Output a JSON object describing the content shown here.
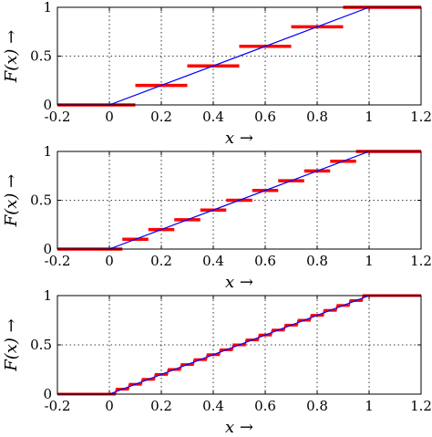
{
  "chart_data": [
    {
      "type": "line",
      "xlim": [
        -0.2,
        1.2
      ],
      "ylim": [
        0,
        1
      ],
      "xlabel": "x →",
      "ylabel": "F(x) →",
      "xticks": [
        "-0.2",
        "0",
        "0.2",
        "0.4",
        "0.6",
        "0.8",
        "1",
        "1.2"
      ],
      "yticks": [
        "0",
        "0.5",
        "1"
      ],
      "grid": true,
      "series": [
        {
          "kind": "continuous-cdf",
          "color": "#0000ff",
          "x": [
            -0.2,
            0,
            1,
            1.2
          ],
          "y": [
            0,
            0,
            1,
            1
          ]
        },
        {
          "kind": "step",
          "color": "#ff0000",
          "steps": [
            {
              "x0": -0.2,
              "x1": 0.1,
              "y": 0
            },
            {
              "x0": 0.1,
              "x1": 0.3,
              "y": 0.2
            },
            {
              "x0": 0.3,
              "x1": 0.5,
              "y": 0.4
            },
            {
              "x0": 0.5,
              "x1": 0.7,
              "y": 0.6
            },
            {
              "x0": 0.7,
              "x1": 0.9,
              "y": 0.8
            },
            {
              "x0": 0.9,
              "x1": 1.2,
              "y": 1
            }
          ]
        }
      ]
    },
    {
      "type": "line",
      "xlim": [
        -0.2,
        1.2
      ],
      "ylim": [
        0,
        1
      ],
      "xlabel": "x →",
      "ylabel": "F(x) →",
      "xticks": [
        "-0.2",
        "0",
        "0.2",
        "0.4",
        "0.6",
        "0.8",
        "1",
        "1.2"
      ],
      "yticks": [
        "0",
        "0.5",
        "1"
      ],
      "grid": true,
      "series": [
        {
          "kind": "continuous-cdf",
          "color": "#0000ff",
          "x": [
            -0.2,
            0,
            1,
            1.2
          ],
          "y": [
            0,
            0,
            1,
            1
          ]
        },
        {
          "kind": "step",
          "color": "#ff0000",
          "steps": [
            {
              "x0": -0.2,
              "x1": 0.05,
              "y": 0
            },
            {
              "x0": 0.05,
              "x1": 0.15,
              "y": 0.1
            },
            {
              "x0": 0.15,
              "x1": 0.25,
              "y": 0.2
            },
            {
              "x0": 0.25,
              "x1": 0.35,
              "y": 0.3
            },
            {
              "x0": 0.35,
              "x1": 0.45,
              "y": 0.4
            },
            {
              "x0": 0.45,
              "x1": 0.55,
              "y": 0.5
            },
            {
              "x0": 0.55,
              "x1": 0.65,
              "y": 0.6
            },
            {
              "x0": 0.65,
              "x1": 0.75,
              "y": 0.7
            },
            {
              "x0": 0.75,
              "x1": 0.85,
              "y": 0.8
            },
            {
              "x0": 0.85,
              "x1": 0.95,
              "y": 0.9
            },
            {
              "x0": 0.95,
              "x1": 1.2,
              "y": 1
            }
          ]
        }
      ]
    },
    {
      "type": "line",
      "xlim": [
        -0.2,
        1.2
      ],
      "ylim": [
        0,
        1
      ],
      "xlabel": "x →",
      "ylabel": "F(x) →",
      "xticks": [
        "-0.2",
        "0",
        "0.2",
        "0.4",
        "0.6",
        "0.8",
        "1",
        "1.2"
      ],
      "yticks": [
        "0",
        "0.5",
        "1"
      ],
      "grid": true,
      "series": [
        {
          "kind": "continuous-cdf",
          "color": "#0000ff",
          "x": [
            -0.2,
            0,
            1,
            1.2
          ],
          "y": [
            0,
            0,
            1,
            1
          ]
        },
        {
          "kind": "step",
          "color": "#ff0000",
          "steps": [
            {
              "x0": -0.2,
              "x1": 0.025,
              "y": 0
            },
            {
              "x0": 0.025,
              "x1": 0.075,
              "y": 0.05
            },
            {
              "x0": 0.075,
              "x1": 0.125,
              "y": 0.1
            },
            {
              "x0": 0.125,
              "x1": 0.175,
              "y": 0.15
            },
            {
              "x0": 0.175,
              "x1": 0.225,
              "y": 0.2
            },
            {
              "x0": 0.225,
              "x1": 0.275,
              "y": 0.25
            },
            {
              "x0": 0.275,
              "x1": 0.325,
              "y": 0.3
            },
            {
              "x0": 0.325,
              "x1": 0.375,
              "y": 0.35
            },
            {
              "x0": 0.375,
              "x1": 0.425,
              "y": 0.4
            },
            {
              "x0": 0.425,
              "x1": 0.475,
              "y": 0.45
            },
            {
              "x0": 0.475,
              "x1": 0.525,
              "y": 0.5
            },
            {
              "x0": 0.525,
              "x1": 0.575,
              "y": 0.55
            },
            {
              "x0": 0.575,
              "x1": 0.625,
              "y": 0.6
            },
            {
              "x0": 0.625,
              "x1": 0.675,
              "y": 0.65
            },
            {
              "x0": 0.675,
              "x1": 0.725,
              "y": 0.7
            },
            {
              "x0": 0.725,
              "x1": 0.775,
              "y": 0.75
            },
            {
              "x0": 0.775,
              "x1": 0.825,
              "y": 0.8
            },
            {
              "x0": 0.825,
              "x1": 0.875,
              "y": 0.85
            },
            {
              "x0": 0.875,
              "x1": 0.925,
              "y": 0.9
            },
            {
              "x0": 0.925,
              "x1": 0.975,
              "y": 0.95
            },
            {
              "x0": 0.975,
              "x1": 1.2,
              "y": 1
            }
          ]
        }
      ]
    }
  ]
}
